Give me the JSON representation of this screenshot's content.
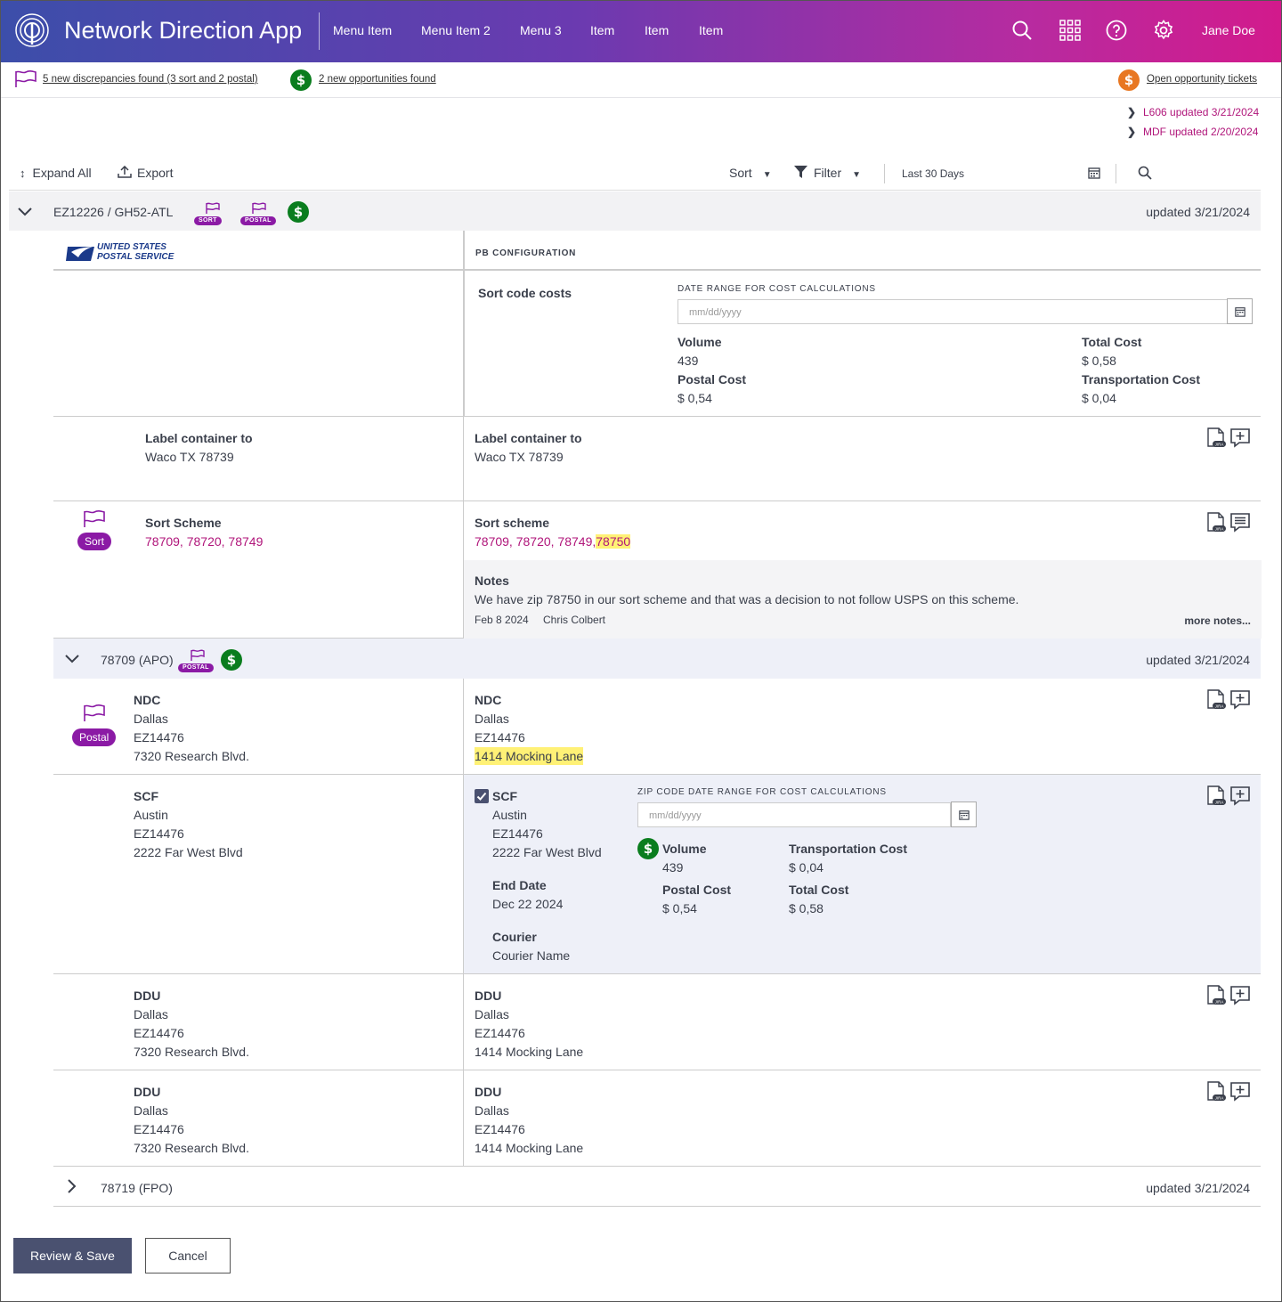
{
  "app": {
    "title": "Network Direction App",
    "user": "Jane Doe"
  },
  "nav": [
    "Menu Item",
    "Menu Item 2",
    "Menu 3",
    "Item",
    "Item",
    "Item"
  ],
  "alerts": {
    "discrepancies": "5 new discrepancies found (3 sort and 2 postal)",
    "opportunities": "2 new opportunities found",
    "tickets": "Open opportunity tickets"
  },
  "updates": [
    "L606 updated 3/21/2024",
    "MDF updated 2/20/2024"
  ],
  "toolbar": {
    "expand": "Expand All",
    "export": "Export",
    "sort": "Sort",
    "filter": "Filter",
    "range": "Last 30 Days"
  },
  "group": {
    "title": "EZ12226 / GH52-ATL",
    "updated": "updated 3/21/2024",
    "pill_sort": "SORT",
    "pill_postal": "POSTAL",
    "usps_line1": "UNITED STATES",
    "usps_line2": "POSTAL SERVICE",
    "pb_config": "PB CONFIGURATION"
  },
  "cost": {
    "title": "Sort code costs",
    "caption": "DATE RANGE FOR COST CALCULATIONS",
    "placeholder": "mm/dd/yyyy",
    "volume_l": "Volume",
    "volume_v": "439",
    "total_l": "Total Cost",
    "total_v": "$ 0,58",
    "postal_l": "Postal Cost",
    "postal_v": "$ 0,54",
    "trans_l": "Transportation Cost",
    "trans_v": "$ 0,04"
  },
  "label_row": {
    "left_l": "Label container to",
    "left_v": "Waco TX 78739",
    "right_l": "Label container to",
    "right_v": "Waco TX 78739"
  },
  "sort_row": {
    "tag": "Sort",
    "left_l": "Sort Scheme",
    "left_v": "78709, 78720, 78749",
    "right_l": "Sort scheme",
    "right_v": "78709, 78720, 78749,",
    "right_hl": "78750"
  },
  "notes": {
    "title": "Notes",
    "text": "We have zip 78750 in our sort scheme and that was a decision to not follow USPS on this scheme.",
    "date": "Feb 8 2024",
    "author": "Chris Colbert",
    "more": "more notes..."
  },
  "sub1": {
    "title": "78709 (APO)",
    "pill": "POSTAL",
    "updated": "updated 3/21/2024"
  },
  "ndc": {
    "tag": "Postal",
    "left": {
      "l": "NDC",
      "a": "Dallas",
      "b": "EZ14476",
      "c": "7320 Research Blvd."
    },
    "right": {
      "l": "NDC",
      "a": "Dallas",
      "b": "EZ14476",
      "c": "1414 Mocking Lane"
    }
  },
  "scf": {
    "left": {
      "l": "SCF",
      "a": "Austin",
      "b": "EZ14476",
      "c": "2222 Far West Blvd"
    },
    "right": {
      "l": "SCF",
      "a": "Austin",
      "b": "EZ14476",
      "c": "2222 Far West Blvd"
    },
    "end_l": "End Date",
    "end_v": "Dec 22 2024",
    "courier_l": "Courier",
    "courier_v": "Courier Name",
    "caption": "ZIP CODE DATE RANGE FOR COST CALCULATIONS",
    "placeholder": "mm/dd/yyyy",
    "volume_l": "Volume",
    "volume_v": "439",
    "trans_l": "Transportation Cost",
    "trans_v": "$ 0,04",
    "postal_l": "Postal Cost",
    "postal_v": "$ 0,54",
    "total_l": "Total Cost",
    "total_v": "$ 0,58"
  },
  "ddu1": {
    "left": {
      "l": "DDU",
      "a": "Dallas",
      "b": "EZ14476",
      "c": "7320 Research Blvd."
    },
    "right": {
      "l": "DDU",
      "a": "Dallas",
      "b": "EZ14476",
      "c": "1414 Mocking Lane"
    }
  },
  "ddu2": {
    "left": {
      "l": "DDU",
      "a": "Dallas",
      "b": "EZ14476",
      "c": "7320 Research Blvd."
    },
    "right": {
      "l": "DDU",
      "a": "Dallas",
      "b": "EZ14476",
      "c": "1414 Mocking Lane"
    }
  },
  "sub2": {
    "title": "78719 (FPO)",
    "updated": "updated 3/21/2024"
  },
  "buttons": {
    "save": "Review & Save",
    "cancel": "Cancel"
  },
  "icons": {
    "jira": "JIRA",
    "dollar": "$"
  }
}
